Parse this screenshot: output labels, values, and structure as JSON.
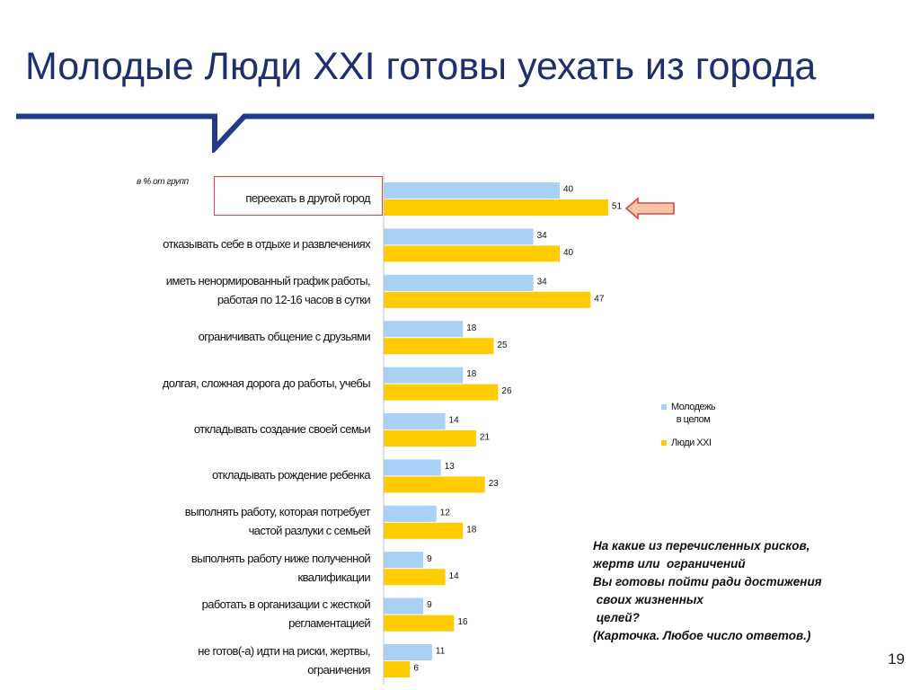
{
  "slide": {
    "title": "Молодые Люди XXI готовы уехать из города",
    "page_number": "19",
    "question_text": "На какие из перечисленных рисков,\nжертв или  ограничений\nВы готовы пойти ради достижения\n своих жизненных\n целей?\n(Карточка. Любое число ответов.)",
    "colors": {
      "title": "#1f2f6e",
      "rule": "#1f3b8a",
      "highlight": "#d9464a",
      "arrow_fill": "#f6c6a6"
    }
  },
  "chart_data": {
    "type": "bar",
    "orientation": "horizontal",
    "units_label": "в % от групп",
    "categories": [
      "переехать в другой город",
      "отказывать себе в отдыхе и развлечениях",
      "иметь ненормированный график работы,\nработая по 12-16 часов в сутки",
      "ограничивать общение с друзьями",
      "долгая, сложная дорога до работы, учебы",
      "откладывать создание своей семьи",
      "откладывать рождение ребенка",
      "выполнять работу, которая потребует\nчастой разлуки с семьей",
      "выполнять работу ниже полученной\nквалификации",
      "работать в организации с жесткой\nрегламентацией",
      "не готов(-а) идти на риски, жертвы,\nограничения"
    ],
    "series": [
      {
        "name": "Молодежь\nв целом",
        "color": "#a8d1f5",
        "values": [
          40,
          34,
          34,
          18,
          18,
          14,
          13,
          12,
          9,
          9,
          11
        ]
      },
      {
        "name": "Люди XXI",
        "color": "#ffcc00",
        "values": [
          51,
          40,
          47,
          25,
          26,
          21,
          23,
          18,
          14,
          16,
          6
        ]
      }
    ],
    "xlim": [
      0,
      60
    ],
    "data_labels": true,
    "legend_position": "right",
    "highlighted_category": "переехать в другой город"
  }
}
